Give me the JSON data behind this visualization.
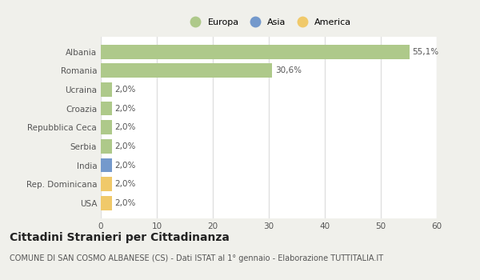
{
  "categories": [
    "Albania",
    "Romania",
    "Ucraina",
    "Croazia",
    "Repubblica Ceca",
    "Serbia",
    "India",
    "Rep. Dominicana",
    "USA"
  ],
  "values": [
    55.1,
    30.6,
    2.0,
    2.0,
    2.0,
    2.0,
    2.0,
    2.0,
    2.0
  ],
  "labels": [
    "55,1%",
    "30,6%",
    "2,0%",
    "2,0%",
    "2,0%",
    "2,0%",
    "2,0%",
    "2,0%",
    "2,0%"
  ],
  "colors": [
    "#aec98a",
    "#aec98a",
    "#aec98a",
    "#aec98a",
    "#aec98a",
    "#aec98a",
    "#7499cc",
    "#f0c96a",
    "#f0c96a"
  ],
  "legend_labels": [
    "Europa",
    "Asia",
    "America"
  ],
  "legend_colors": [
    "#aec98a",
    "#7499cc",
    "#f0c96a"
  ],
  "xlim": [
    0,
    60
  ],
  "xticks": [
    0,
    10,
    20,
    30,
    40,
    50,
    60
  ],
  "title": "Cittadini Stranieri per Cittadinanza",
  "subtitle": "COMUNE DI SAN COSMO ALBANESE (CS) - Dati ISTAT al 1° gennaio - Elaborazione TUTTITALIA.IT",
  "bg_color": "#f0f0eb",
  "plot_bg_color": "#ffffff",
  "grid_color": "#e0e0e0",
  "title_fontsize": 10,
  "subtitle_fontsize": 7,
  "label_fontsize": 7.5,
  "tick_fontsize": 7.5,
  "legend_fontsize": 8
}
